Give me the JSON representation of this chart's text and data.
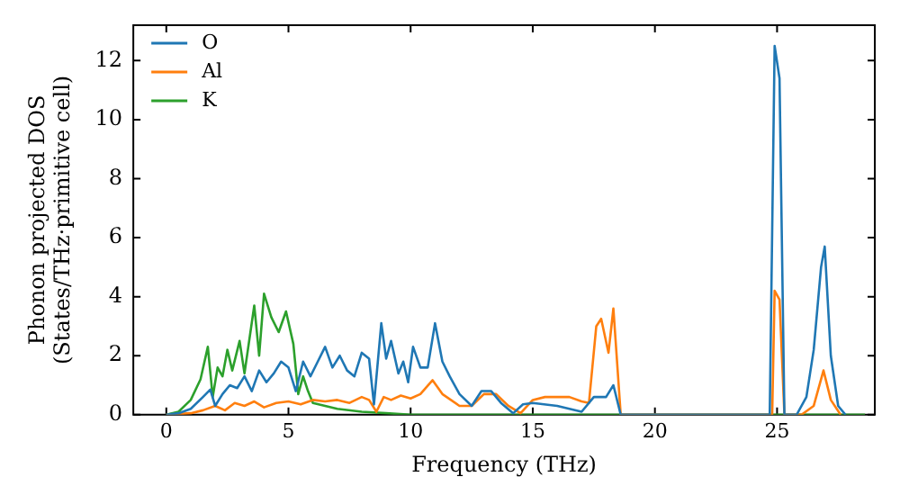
{
  "chart_data": {
    "type": "line",
    "xlabel": "Frequency (THz)",
    "ylabel": "Phonon projected DOS\n(States/THz·primitive cell)",
    "xlim": [
      -1.35,
      29
    ],
    "ylim": [
      0,
      13.2
    ],
    "xticks": [
      0,
      5,
      10,
      15,
      20,
      25
    ],
    "yticks": [
      0,
      2,
      4,
      6,
      8,
      10,
      12
    ],
    "grid": false,
    "legend": "top left",
    "marker": "none",
    "line_style": "solid",
    "series": [
      {
        "name": "O",
        "color": "#1f77b4",
        "x": [
          0,
          0.5,
          1,
          1.5,
          1.8,
          2,
          2.3,
          2.6,
          2.9,
          3.2,
          3.5,
          3.8,
          4.1,
          4.4,
          4.7,
          5,
          5.3,
          5.6,
          5.9,
          6.2,
          6.5,
          6.8,
          7.1,
          7.4,
          7.7,
          8,
          8.3,
          8.5,
          8.8,
          9,
          9.2,
          9.5,
          9.7,
          9.9,
          10.1,
          10.4,
          10.7,
          11,
          11.3,
          11.6,
          12,
          12.5,
          12.9,
          13.3,
          13.7,
          14.2,
          14.6,
          15,
          16,
          17,
          17.5,
          18,
          18.3,
          18.6,
          24.7,
          24.9,
          25.1,
          25.3,
          25.8,
          26.2,
          26.5,
          26.8,
          26.95,
          27.2,
          27.5,
          27.8
        ],
        "values": [
          0,
          0.05,
          0.2,
          0.6,
          0.85,
          0.3,
          0.7,
          1,
          0.9,
          1.3,
          0.8,
          1.5,
          1.1,
          1.4,
          1.8,
          1.6,
          0.8,
          1.8,
          1.3,
          1.8,
          2.3,
          1.6,
          2,
          1.5,
          1.3,
          2.1,
          1.9,
          0.35,
          3.1,
          1.9,
          2.5,
          1.4,
          1.8,
          1.1,
          2.3,
          1.6,
          1.6,
          3.1,
          1.8,
          1.3,
          0.7,
          0.3,
          0.8,
          0.8,
          0.4,
          0.05,
          0.35,
          0.4,
          0.3,
          0.1,
          0.6,
          0.6,
          1,
          0,
          0,
          12.5,
          11.4,
          0,
          0,
          0.6,
          2.2,
          5,
          5.7,
          2,
          0.3,
          0
        ]
      },
      {
        "name": "Al",
        "color": "#ff7f0e",
        "x": [
          0,
          1,
          1.5,
          2,
          2.4,
          2.8,
          3.2,
          3.6,
          4,
          4.5,
          5,
          5.5,
          6,
          6.5,
          7,
          7.5,
          8,
          8.3,
          8.6,
          8.9,
          9.2,
          9.6,
          10,
          10.4,
          10.9,
          11.3,
          12,
          12.5,
          13,
          13.5,
          14,
          14.5,
          15,
          15.5,
          16,
          16.5,
          17,
          17.3,
          17.6,
          17.8,
          18.1,
          18.3,
          18.6,
          24.8,
          24.9,
          25.1,
          25.3,
          26,
          26.5,
          26.9,
          27.2,
          27.6
        ],
        "values": [
          0,
          0.05,
          0.15,
          0.3,
          0.15,
          0.4,
          0.3,
          0.45,
          0.25,
          0.4,
          0.45,
          0.35,
          0.5,
          0.45,
          0.5,
          0.4,
          0.6,
          0.5,
          0.1,
          0.6,
          0.5,
          0.65,
          0.55,
          0.7,
          1.17,
          0.7,
          0.3,
          0.3,
          0.7,
          0.7,
          0.3,
          0.05,
          0.5,
          0.6,
          0.6,
          0.6,
          0.45,
          0.4,
          3,
          3.25,
          2.1,
          3.6,
          0,
          0,
          4.2,
          3.9,
          0,
          0,
          0.3,
          1.5,
          0.5,
          0
        ]
      },
      {
        "name": "K",
        "color": "#2ca02c",
        "x": [
          0,
          0.5,
          1,
          1.4,
          1.7,
          1.9,
          2.1,
          2.3,
          2.5,
          2.7,
          3,
          3.2,
          3.6,
          3.8,
          4,
          4.3,
          4.6,
          4.9,
          5.2,
          5.4,
          5.6,
          5.8,
          6,
          6.5,
          7,
          8,
          9,
          10,
          28.6
        ],
        "values": [
          0,
          0.1,
          0.5,
          1.2,
          2.3,
          0.6,
          1.6,
          1.3,
          2.2,
          1.5,
          2.5,
          1.4,
          3.7,
          2,
          4.1,
          3.3,
          2.8,
          3.5,
          2.4,
          0.7,
          1.3,
          0.8,
          0.4,
          0.3,
          0.2,
          0.1,
          0.05,
          0,
          0
        ]
      }
    ]
  }
}
